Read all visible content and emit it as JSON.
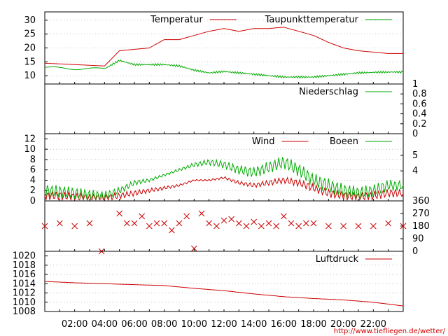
{
  "chart_data": [
    {
      "type": "line",
      "title": "",
      "xlabel": "",
      "ylabel": "",
      "ylim": [
        7,
        33
      ],
      "yticks": [
        "10",
        "15",
        "20",
        "25",
        "30"
      ],
      "yticks_right": [],
      "grid": true,
      "legend": "top-right",
      "series": [
        {
          "name": "Temperatur",
          "color": "#cc0000",
          "x": [
            0,
            2,
            4,
            5,
            6,
            7,
            8,
            9,
            10,
            11,
            12,
            13,
            14,
            15,
            16,
            17,
            18,
            19,
            20,
            21,
            22,
            23,
            24
          ],
          "y": [
            14.5,
            14.0,
            13.5,
            19,
            19.5,
            20,
            23,
            23,
            24.5,
            26,
            27,
            26,
            27,
            27,
            27.5,
            26,
            24.5,
            22,
            20,
            19,
            18.5,
            18,
            18
          ]
        },
        {
          "name": "Taupunkttemperatur",
          "color": "#00aa00",
          "x": [
            0,
            2,
            4,
            5,
            6,
            7,
            8,
            9,
            10,
            11,
            12,
            13,
            14,
            15,
            16,
            17,
            18,
            19,
            20,
            21,
            22,
            23,
            24
          ],
          "y": [
            13,
            12.5,
            12.5,
            15.5,
            14,
            14,
            14,
            13.5,
            12,
            11,
            11.5,
            11,
            10.5,
            10,
            9.5,
            9.5,
            9.5,
            10,
            10.5,
            11,
            11.2,
            11.3,
            11.3
          ]
        }
      ]
    },
    {
      "type": "line",
      "title": "",
      "xlabel": "",
      "ylabel": "",
      "ylim": [
        0,
        1
      ],
      "yticks": [],
      "yticks_right": [
        "0",
        "0.2",
        "0.4",
        "0.6",
        "0.8",
        "1"
      ],
      "grid": false,
      "legend": "top-right",
      "series": [
        {
          "name": "Niederschlag",
          "color": "#00aa00",
          "x": [
            0,
            24
          ],
          "y": [
            0,
            0
          ]
        }
      ]
    },
    {
      "type": "line",
      "title": "",
      "xlabel": "",
      "ylabel": "",
      "ylim": [
        0,
        13
      ],
      "yticks": [
        "0",
        "2",
        "4",
        "6",
        "8",
        "10",
        "12"
      ],
      "yticks_right": [
        "4",
        "5"
      ],
      "grid": true,
      "legend": "top-right",
      "series": [
        {
          "name": "Wind",
          "color": "#cc0000",
          "x": [
            0,
            1,
            2,
            3,
            4,
            5,
            6,
            7,
            8,
            9,
            10,
            11,
            12,
            13,
            14,
            15,
            16,
            17,
            18,
            19,
            20,
            21,
            22,
            23,
            24
          ],
          "y": [
            1,
            1,
            0.8,
            0.6,
            0.5,
            1,
            1.5,
            2,
            2.5,
            3,
            4,
            4,
            4.5,
            3.5,
            3,
            3.5,
            4,
            3.5,
            2.5,
            1.5,
            1,
            0.8,
            1,
            1.5,
            1.5
          ]
        },
        {
          "name": "Boeen",
          "color": "#00aa00",
          "x": [
            0,
            1,
            2,
            3,
            4,
            5,
            6,
            7,
            8,
            9,
            10,
            11,
            12,
            13,
            14,
            15,
            16,
            17,
            18,
            19,
            20,
            21,
            22,
            23,
            24
          ],
          "y": [
            2,
            1.8,
            1.5,
            1.2,
            1,
            2,
            3.5,
            4,
            5,
            6,
            7,
            7.5,
            7,
            6,
            5.5,
            6.5,
            7.5,
            6,
            4,
            3,
            2,
            1.5,
            2,
            3,
            3
          ]
        }
      ]
    },
    {
      "type": "scatter",
      "title": "",
      "xlabel": "",
      "ylabel": "",
      "ylim": [
        0,
        360
      ],
      "yticks": [],
      "yticks_right": [
        "0",
        "90",
        "180",
        "270",
        "360"
      ],
      "grid": false,
      "legend": "",
      "series": [
        {
          "name": "",
          "color": "#cc0000",
          "x": [
            0,
            1,
            2,
            3,
            3.8,
            5,
            5.5,
            6,
            6.5,
            7,
            7.5,
            8,
            8.5,
            9,
            9.5,
            10,
            10.5,
            11,
            11.5,
            12,
            12.5,
            13,
            13.5,
            14,
            14.5,
            15,
            15.5,
            16,
            16.5,
            17,
            17.5,
            18,
            19,
            20,
            21,
            22,
            23,
            24
          ],
          "y": [
            180,
            200,
            180,
            200,
            0,
            270,
            200,
            200,
            250,
            180,
            200,
            200,
            150,
            200,
            250,
            20,
            270,
            200,
            180,
            220,
            230,
            200,
            180,
            210,
            180,
            200,
            180,
            250,
            200,
            180,
            200,
            200,
            180,
            180,
            180,
            180,
            200,
            180
          ]
        }
      ]
    },
    {
      "type": "line",
      "title": "",
      "xlabel": "",
      "ylabel": "",
      "ylim": [
        1008,
        1021
      ],
      "yticks": [
        "1008",
        "1010",
        "1012",
        "1014",
        "1016",
        "1018",
        "1020"
      ],
      "yticks_right": [],
      "grid": true,
      "legend": "top-right",
      "series": [
        {
          "name": "Luftdruck",
          "color": "#cc0000",
          "x": [
            0,
            2,
            4,
            6,
            8,
            10,
            12,
            14,
            16,
            18,
            20,
            22,
            24
          ],
          "y": [
            1014.5,
            1014.2,
            1014.0,
            1013.8,
            1013.6,
            1013.0,
            1012.5,
            1011.8,
            1011.2,
            1010.8,
            1010.5,
            1010.0,
            1009.2
          ]
        }
      ]
    }
  ],
  "x_axis": {
    "xlim": [
      0,
      24
    ],
    "tick_positions": [
      2,
      4,
      6,
      8,
      10,
      12,
      14,
      16,
      18,
      20,
      22
    ],
    "tick_labels": [
      "02:00",
      "04:00",
      "06:00",
      "08:00",
      "10:00",
      "12:00",
      "14:00",
      "16:00",
      "18:00",
      "20:00",
      "22:00"
    ]
  },
  "credit": "http://www.tiefliegen.de/wetter/"
}
